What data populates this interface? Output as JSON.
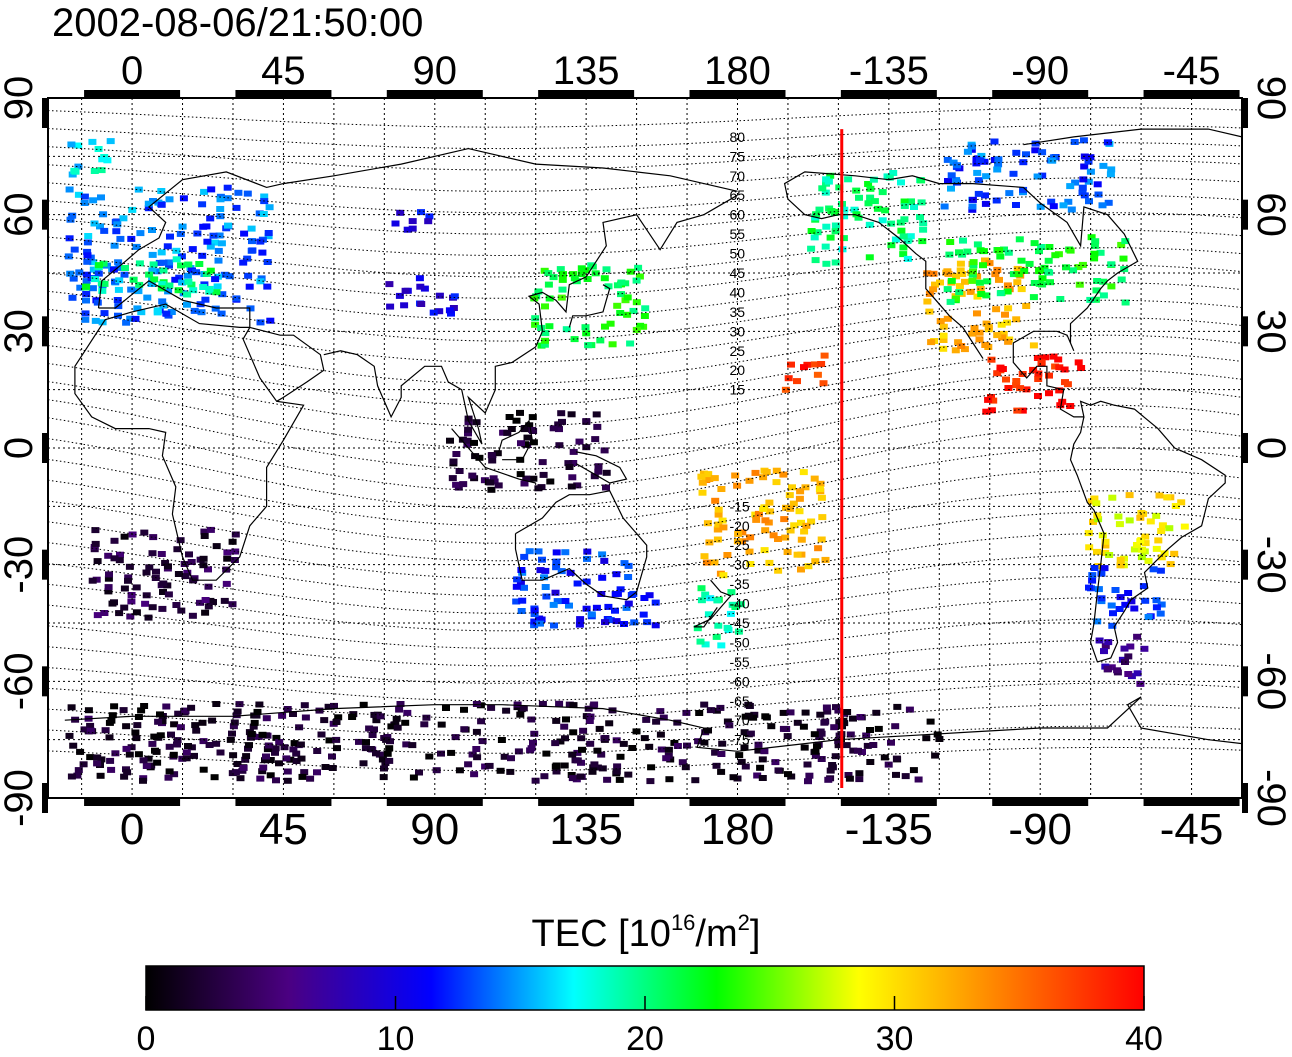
{
  "title": "2002-08-06/21:50:00",
  "map": {
    "lon_ticks": [
      "0",
      "45",
      "90",
      "135",
      "180",
      "-135",
      "-90",
      "-45"
    ],
    "lat_ticks": [
      "90",
      "60",
      "30",
      "0",
      "-30",
      "-60",
      "-90"
    ],
    "lon_tick_values": [
      0,
      45,
      90,
      135,
      180,
      225,
      270,
      315
    ],
    "lat_tick_values": [
      90,
      60,
      30,
      0,
      -30,
      -60,
      -90
    ],
    "lon_range": [
      -25,
      330
    ],
    "lat_range": [
      -90,
      90
    ],
    "terminator_longitude": 211,
    "terminator_color": "#ff0000",
    "contour_labels": [
      "80",
      "75",
      "70",
      "65",
      "60",
      "55",
      "50",
      "45",
      "40",
      "35",
      "30",
      "25",
      "20",
      "15",
      "-15",
      "-20",
      "-25",
      "-30",
      "-35",
      "-40",
      "-45",
      "-50",
      "-55",
      "-60",
      "-65",
      "-70",
      "-75"
    ],
    "contour_label_lats": [
      80,
      75,
      70,
      65,
      60,
      55,
      50,
      45,
      40,
      35,
      30,
      25,
      20,
      15,
      -15,
      -20,
      -25,
      -30,
      -35,
      -40,
      -45,
      -50,
      -55,
      -60,
      -65,
      -70,
      -75
    ],
    "contour_label_lon": 180
  },
  "chart_data": {
    "type": "heatmap",
    "title": "2002-08-06/21:50:00",
    "xlabel": "",
    "ylabel": "",
    "xlim": [
      -25,
      330
    ],
    "ylim": [
      -90,
      90
    ],
    "grid": true,
    "regions": [
      {
        "lon": [
          -20,
          40
        ],
        "lat": [
          33,
          68
        ],
        "tec": 14
      },
      {
        "lon": [
          -15,
          25
        ],
        "lat": [
          40,
          50
        ],
        "tec": 20
      },
      {
        "lon": [
          75,
          95
        ],
        "lat": [
          35,
          45
        ],
        "tec": 10
      },
      {
        "lon": [
          77,
          92
        ],
        "lat": [
          56,
          62
        ],
        "tec": 10
      },
      {
        "lon": [
          118,
          152
        ],
        "lat": [
          27,
          48
        ],
        "tec": 22
      },
      {
        "lon": [
          -20,
          -5
        ],
        "lat": [
          70,
          80
        ],
        "tec": 17
      },
      {
        "lon": [
          -13,
          30
        ],
        "lat": [
          -43,
          -20
        ],
        "tec": 3
      },
      {
        "lon": [
          93,
          140
        ],
        "lat": [
          -10,
          10
        ],
        "tec": 2
      },
      {
        "lon": [
          113,
          155
        ],
        "lat": [
          -45,
          -25
        ],
        "tec": 12
      },
      {
        "lon": [
          165,
          180
        ],
        "lat": [
          -50,
          -35
        ],
        "tec": 19
      },
      {
        "lon": [
          168,
          205
        ],
        "lat": [
          -32,
          -5
        ],
        "tec": 32
      },
      {
        "lon": [
          193,
          205
        ],
        "lat": [
          15,
          25
        ],
        "tec": 38
      },
      {
        "lon": [
          200,
          235
        ],
        "lat": [
          48,
          72
        ],
        "tec": 20
      },
      {
        "lon": [
          235,
          268
        ],
        "lat": [
          25,
          49
        ],
        "tec": 32
      },
      {
        "lon": [
          240,
          295
        ],
        "lat": [
          38,
          55
        ],
        "tec": 22
      },
      {
        "lon": [
          252,
          282
        ],
        "lat": [
          10,
          25
        ],
        "tec": 39
      },
      {
        "lon": [
          240,
          290
        ],
        "lat": [
          62,
          80
        ],
        "tec": 13
      },
      {
        "lon": [
          283,
          312
        ],
        "lat": [
          -30,
          -10
        ],
        "tec": 29
      },
      {
        "lon": [
          283,
          305
        ],
        "lat": [
          -45,
          -30
        ],
        "tec": 12
      },
      {
        "lon": [
          285,
          300
        ],
        "lat": [
          -60,
          -45
        ],
        "tec": 6
      },
      {
        "lon": [
          -20,
          240
        ],
        "lat": [
          -85,
          -65
        ],
        "tec": 2
      }
    ],
    "colorbar": {
      "label_main": "TEC  [10",
      "label_exp": "16",
      "label_mid": "/m",
      "label_exp2": "2",
      "label_end": "]",
      "ticks": [
        "0",
        "10",
        "20",
        "30",
        "40"
      ],
      "tick_values": [
        0,
        10,
        20,
        30,
        40
      ],
      "range": [
        0,
        40
      ],
      "colors": [
        "#000000",
        "#4b0082",
        "#0000ff",
        "#00ffff",
        "#00ff00",
        "#ffff00",
        "#ff8000",
        "#ff0000"
      ]
    }
  }
}
